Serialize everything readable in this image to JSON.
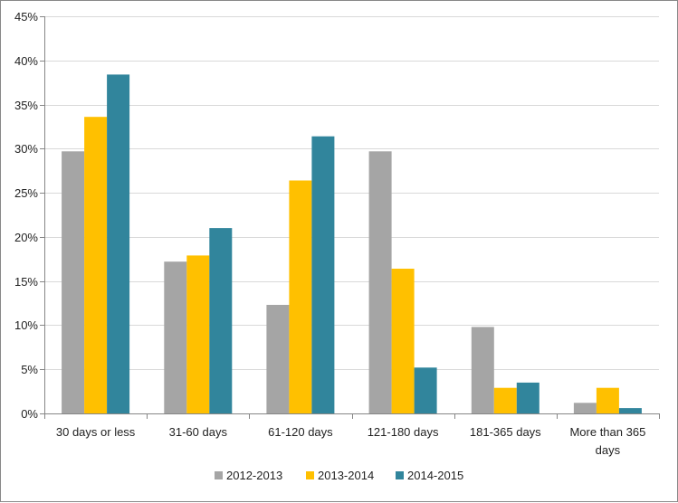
{
  "chart_data": {
    "type": "bar",
    "title": "",
    "xlabel": "",
    "ylabel": "",
    "categories": [
      [
        "30 days or less"
      ],
      [
        "31-60 days"
      ],
      [
        "61-120 days"
      ],
      [
        "121-180 days"
      ],
      [
        "181-365 days"
      ],
      [
        "More than 365",
        "days"
      ]
    ],
    "series": [
      {
        "name": "2012-2013",
        "color": "#a5a5a5",
        "values": [
          29.7,
          17.2,
          12.3,
          29.7,
          9.8,
          1.2
        ]
      },
      {
        "name": "2013-2014",
        "color": "#ffc000",
        "values": [
          33.6,
          17.9,
          26.4,
          16.4,
          2.9,
          2.9
        ]
      },
      {
        "name": "2014-2015",
        "color": "#31859c",
        "values": [
          38.4,
          21.0,
          31.4,
          5.2,
          3.5,
          0.6
        ]
      }
    ],
    "ylim": [
      0,
      45
    ],
    "yticks": [
      0,
      5,
      10,
      15,
      20,
      25,
      30,
      35,
      40,
      45
    ],
    "ytick_labels": [
      "0%",
      "5%",
      "10%",
      "15%",
      "20%",
      "25%",
      "30%",
      "35%",
      "40%",
      "45%"
    ],
    "grid": true,
    "legend_position": "bottom"
  }
}
